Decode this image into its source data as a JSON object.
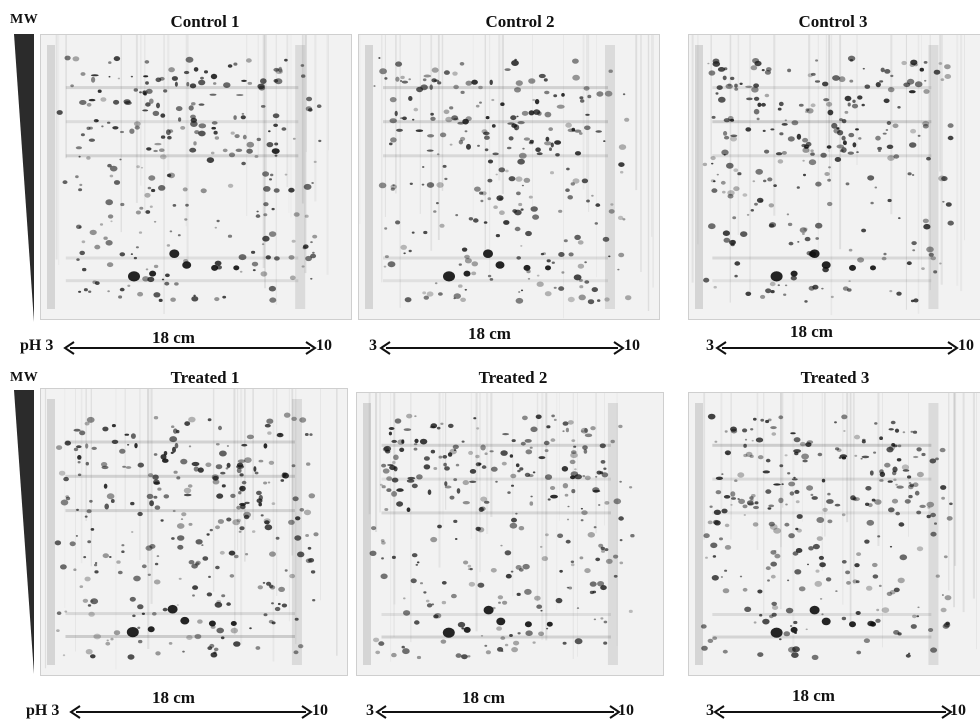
{
  "mw_label": "MW",
  "rows": [
    {
      "gels": [
        {
          "title": "Control 1",
          "length": "18 cm",
          "left_end": "pH 3",
          "right_end": "10"
        },
        {
          "title": "Control 2",
          "length": "18 cm",
          "left_end": "3",
          "right_end": "10"
        },
        {
          "title": "Control 3",
          "length": "18 cm",
          "left_end": "3",
          "right_end": "10"
        }
      ]
    },
    {
      "gels": [
        {
          "title": "Treated 1",
          "length": "18 cm",
          "left_end": "pH 3",
          "right_end": "10"
        },
        {
          "title": "Treated 2",
          "length": "18 cm",
          "left_end": "3",
          "right_end": "10"
        },
        {
          "title": "Treated 3",
          "length": "18 cm",
          "left_end": "3",
          "right_end": "10"
        }
      ]
    }
  ],
  "colors": {
    "wedge": "#2b2b2b",
    "gel_background": "#f2f2f2",
    "spot": "#1a1a1a"
  }
}
